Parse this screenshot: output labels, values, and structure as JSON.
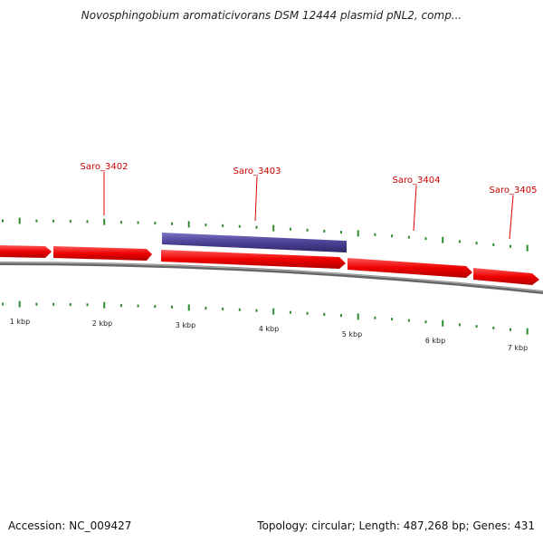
{
  "title": "Novosphingobium aromaticivorans DSM 12444 plasmid pNL2, comp...",
  "genes": [
    {
      "name": "Saro_3402"
    },
    {
      "name": "Saro_3403"
    },
    {
      "name": "Saro_3404"
    },
    {
      "name": "Saro_3405"
    }
  ],
  "scale_labels": [
    "1 kbp",
    "2 kbp",
    "3 kbp",
    "4 kbp",
    "5 kbp",
    "6 kbp",
    "7 kbp"
  ],
  "footer": {
    "accession": "Accession: NC_009427",
    "summary": "Topology: circular; Length: 487,268 bp; Genes: 431"
  },
  "colors": {
    "forward_gene": "#e60000",
    "selected_gene": "#4a4194",
    "backbone": "#777777",
    "tick": "#2e8b2e",
    "label": "#cc0000"
  }
}
